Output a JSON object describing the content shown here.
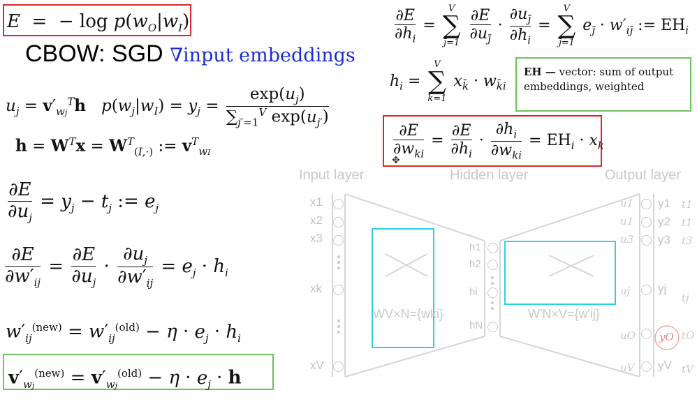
{
  "title_heading": "CBOW: SGD",
  "title_gradient": "∇input embeddings",
  "note_bold": "EH —",
  "note_text": "vector: sum of output embeddings, weighted",
  "layers": {
    "input": "Input layer",
    "hidden": "Hidden layer",
    "output": "Output layer"
  },
  "input_nodes": [
    "x1",
    "x2",
    "x3",
    "xk",
    "xV"
  ],
  "hidden_nodes": [
    "h1",
    "h2",
    "hi",
    "hN"
  ],
  "output_u": [
    "u1",
    "u1",
    "u3",
    "uj",
    "uO",
    "uV"
  ],
  "output_y": [
    "y1",
    "y2",
    "y3",
    "yj",
    "yO",
    "yV"
  ],
  "output_t": [
    "t1",
    "t1",
    "t3",
    "tj",
    "tO",
    "tV"
  ],
  "w_label": "WV×N={wki}",
  "w_prime_label": "W'N×V={w'ij}",
  "colors": {
    "red_box": "#d9282a",
    "green_box": "#6cc25c",
    "cyan_box": "#27d4de",
    "gradient_text": "#1a2cd8",
    "diagram_gray": "#c8c8c8"
  }
}
